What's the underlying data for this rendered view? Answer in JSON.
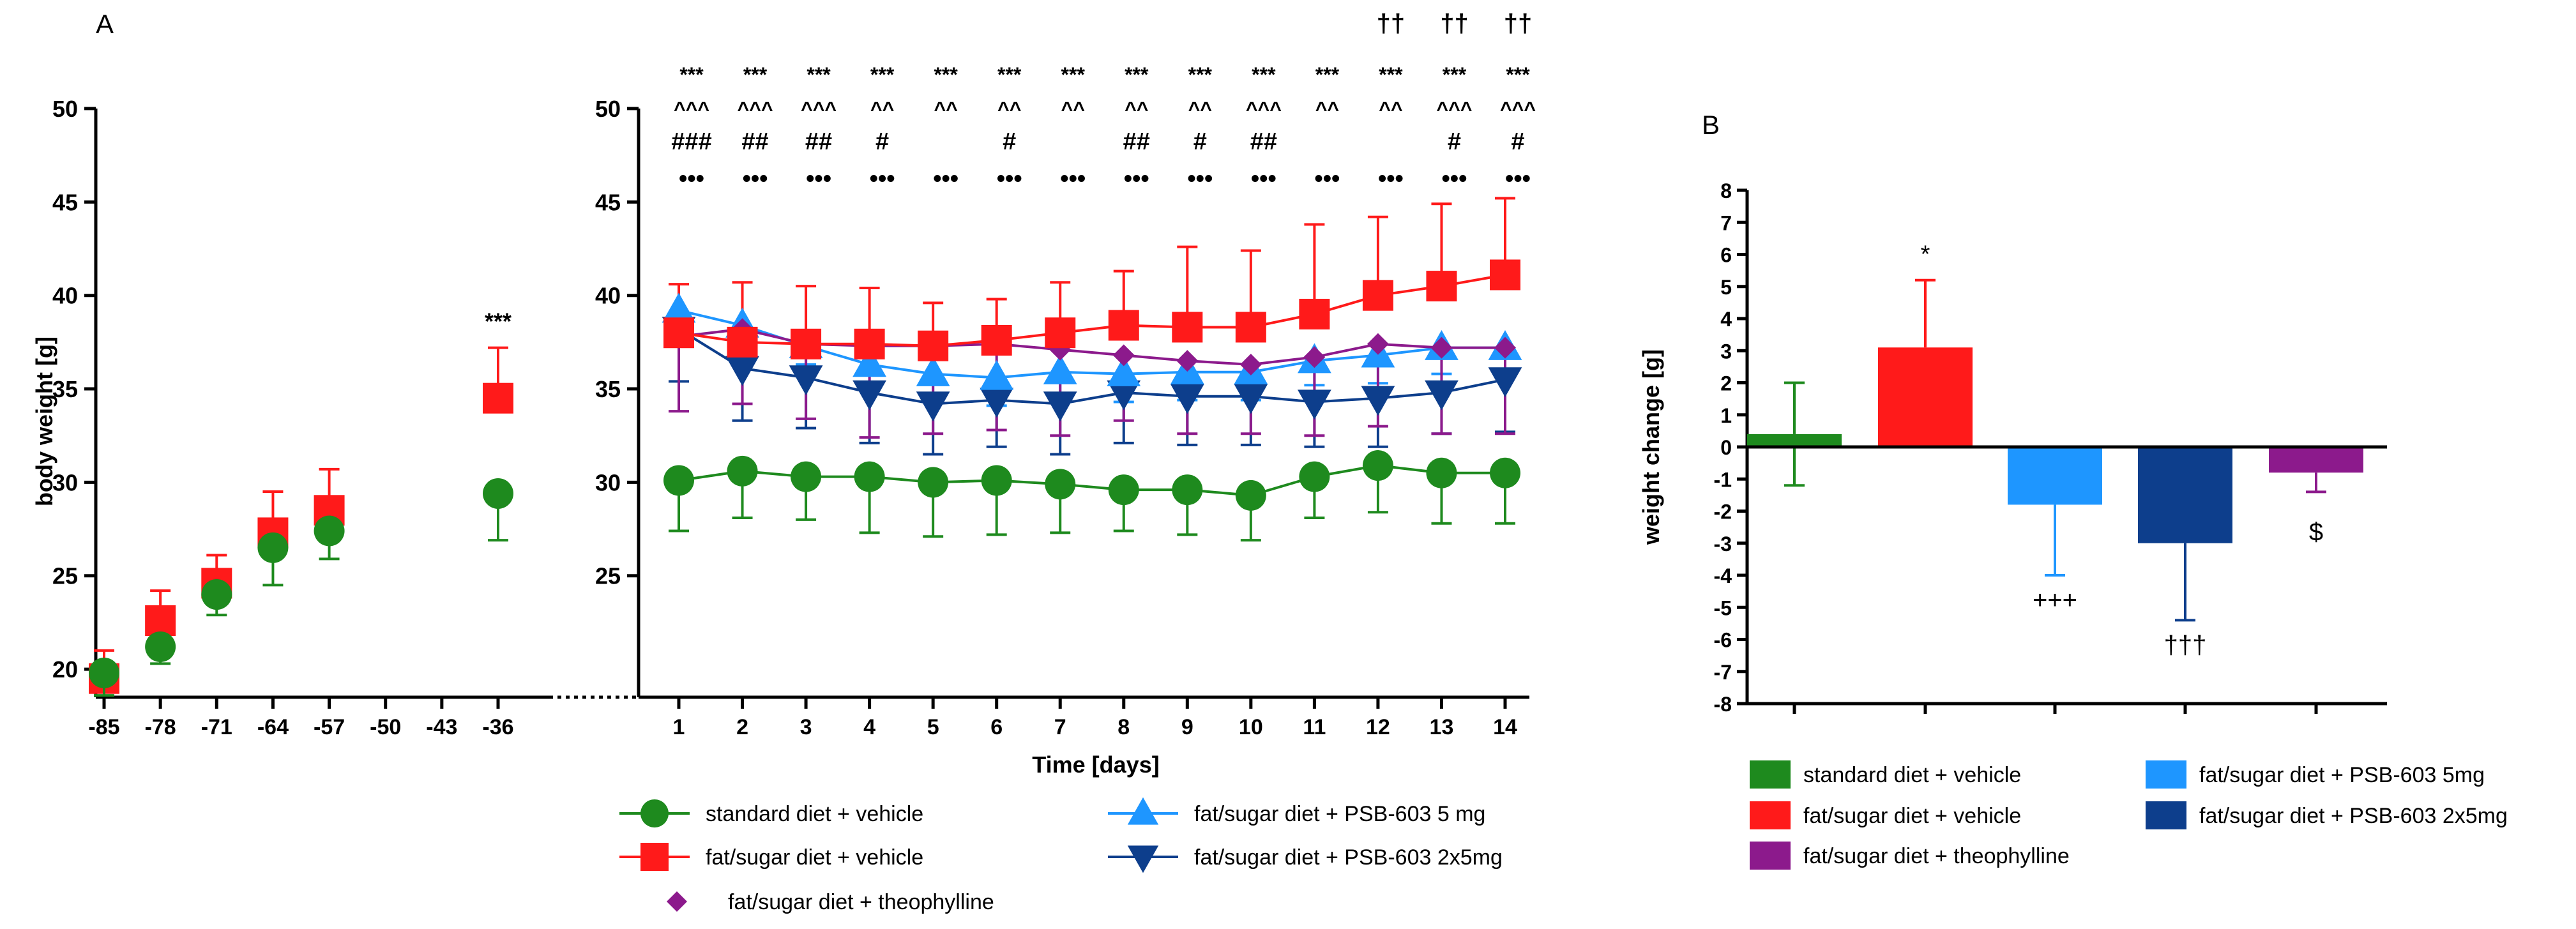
{
  "colors": {
    "green": "#1e8a1e",
    "red": "#ff1a1a",
    "lightblue": "#1e96ff",
    "navy": "#0d3e8c",
    "purple": "#8c1a8c",
    "axis": "#000000"
  },
  "chart_data": [
    {
      "panel": "A-left",
      "type": "scatter",
      "panel_label": "A",
      "ylabel": "body weight [g]",
      "xlabel": "",
      "xticks": [
        "-85",
        "-78",
        "-71",
        "-64",
        "-57",
        "-50",
        "-43",
        "-36"
      ],
      "yticks": [
        "20",
        "25",
        "30",
        "35",
        "40",
        "45",
        "50"
      ],
      "xlim": [
        -86,
        -30
      ],
      "ylim": [
        18.5,
        50
      ],
      "series": [
        {
          "name": "standard diet + vehicle",
          "color_key": "green",
          "marker": "circle",
          "x": [
            -85,
            -78,
            -71,
            -64,
            -57,
            -36
          ],
          "values": [
            19.8,
            21.2,
            24.0,
            26.5,
            27.4,
            29.4
          ],
          "err": [
            1.2,
            0.9,
            1.1,
            2.0,
            1.5,
            2.5
          ]
        },
        {
          "name": "fat/sugar diet + vehicle",
          "color_key": "red",
          "marker": "square",
          "x": [
            -85,
            -78,
            -71,
            -64,
            -57,
            -36
          ],
          "values": [
            19.5,
            22.6,
            24.6,
            27.3,
            28.5,
            34.5
          ],
          "err": [
            1.5,
            1.6,
            1.5,
            2.2,
            2.2,
            2.7
          ]
        }
      ],
      "annotations": [
        {
          "x": -36,
          "y": 38.2,
          "text": "***"
        }
      ]
    },
    {
      "panel": "A-right",
      "type": "line",
      "xlabel": "Time [days]",
      "xticks": [
        "1",
        "2",
        "3",
        "4",
        "5",
        "6",
        "7",
        "8",
        "9",
        "10",
        "11",
        "12",
        "13",
        "14"
      ],
      "yticks": [
        "25",
        "30",
        "35",
        "40",
        "45",
        "50"
      ],
      "ylim": [
        18.5,
        50
      ],
      "series": [
        {
          "name": "standard diet + vehicle",
          "color_key": "green",
          "marker": "circle",
          "values": [
            30.1,
            30.6,
            30.3,
            30.3,
            30.0,
            30.1,
            29.9,
            29.6,
            29.6,
            29.3,
            30.3,
            30.9,
            30.5,
            30.5
          ],
          "err": [
            2.7,
            2.5,
            2.3,
            3.0,
            2.9,
            2.9,
            2.6,
            2.2,
            2.4,
            2.4,
            2.2,
            2.5,
            2.7,
            2.7
          ],
          "err_dir": "down"
        },
        {
          "name": "fat/sugar diet + vehicle",
          "color_key": "red",
          "marker": "square",
          "values": [
            38.0,
            37.5,
            37.4,
            37.4,
            37.3,
            37.6,
            38.0,
            38.4,
            38.3,
            38.3,
            39.0,
            40.0,
            40.5,
            41.1
          ],
          "err": [
            2.6,
            3.2,
            3.1,
            3.0,
            2.3,
            2.2,
            2.7,
            2.9,
            4.3,
            4.1,
            4.8,
            4.2,
            4.4,
            4.1
          ],
          "err_dir": "up"
        },
        {
          "name": "fat/sugar diet + theophylline",
          "color_key": "purple",
          "marker": "diamond",
          "values": [
            37.8,
            38.2,
            37.4,
            37.3,
            37.3,
            37.4,
            37.1,
            36.8,
            36.5,
            36.3,
            36.7,
            37.4,
            37.2,
            37.2
          ],
          "err": [
            4.0,
            4.0,
            4.0,
            4.9,
            4.7,
            4.6,
            4.6,
            3.5,
            3.9,
            3.7,
            4.2,
            4.4,
            4.6,
            4.6
          ],
          "err_dir": "down"
        },
        {
          "name": "fat/sugar diet + PSB-603 5 mg",
          "color_key": "lightblue",
          "marker": "triangle-up",
          "values": [
            39.2,
            38.4,
            37.3,
            36.3,
            35.8,
            35.6,
            35.9,
            35.8,
            35.9,
            35.9,
            36.5,
            36.8,
            37.2,
            37.2
          ],
          "err": [
            1.5,
            1.0,
            1.0,
            1.3,
            1.5,
            1.5,
            1.2,
            1.5,
            1.5,
            1.5,
            1.3,
            1.5,
            1.4,
            1.4
          ],
          "err_dir": "down"
        },
        {
          "name": "fat/sugar diet + PSB-603 2x5mg",
          "color_key": "navy",
          "marker": "triangle-down",
          "values": [
            38.2,
            36.1,
            35.6,
            34.8,
            34.2,
            34.4,
            34.2,
            34.8,
            34.6,
            34.6,
            34.3,
            34.5,
            34.8,
            35.5
          ],
          "err": [
            2.8,
            2.8,
            2.7,
            2.7,
            2.7,
            2.5,
            2.7,
            2.7,
            2.6,
            2.6,
            2.4,
            2.6,
            2.2,
            2.8
          ],
          "err_dir": "down"
        }
      ],
      "significance": {
        "dagger": [
          "",
          "",
          "",
          "",
          "",
          "",
          "",
          "",
          "",
          "",
          "",
          "††",
          "††",
          "††"
        ],
        "stars": [
          "***",
          "***",
          "***",
          "***",
          "***",
          "***",
          "***",
          "***",
          "***",
          "***",
          "***",
          "***",
          "***",
          "***"
        ],
        "caret": [
          "^^^",
          "^^^",
          "^^^",
          "^^",
          "^^",
          "^^",
          "^^",
          "^^",
          "^^",
          "^^^",
          "^^",
          "^^",
          "^^^",
          "^^^"
        ],
        "hash": [
          "###",
          "##",
          "##",
          "#",
          "",
          "#",
          "",
          "##",
          "#",
          "##",
          "",
          "",
          "#",
          "#"
        ],
        "dots": [
          "•••",
          "•••",
          "•••",
          "•••",
          "•••",
          "•••",
          "•••",
          "•••",
          "•••",
          "•••",
          "•••",
          "•••",
          "•••",
          "•••"
        ]
      }
    },
    {
      "panel": "B",
      "type": "bar",
      "panel_label": "B",
      "ylabel": "weight change [g]",
      "yticks": [
        "8",
        "7",
        "6",
        "5",
        "4",
        "3",
        "2",
        "1",
        "0",
        "-1",
        "-2",
        "-3",
        "-4",
        "-5",
        "-6",
        "-7",
        "-8"
      ],
      "ylim": [
        -8,
        8
      ],
      "categories": [
        "standard diet + vehicle",
        "fat/sugar diet + vehicle",
        "fat/sugar diet + PSB-603 5mg",
        "fat/sugar diet + PSB-603 2x5mg",
        "fat/sugar diet + theophylline"
      ],
      "color_keys": [
        "green",
        "red",
        "lightblue",
        "navy",
        "purple"
      ],
      "values": [
        0.4,
        3.1,
        -1.8,
        -3.0,
        -0.8
      ],
      "err": [
        1.6,
        2.1,
        2.2,
        2.4,
        0.6
      ],
      "labels": [
        "",
        "*",
        "+++",
        "†††",
        "$"
      ]
    }
  ],
  "legend_a": [
    {
      "label": "standard diet + vehicle",
      "color_key": "green",
      "marker": "circle"
    },
    {
      "label": "fat/sugar diet + vehicle",
      "color_key": "red",
      "marker": "square"
    },
    {
      "label": "fat/sugar diet + theophylline",
      "color_key": "purple",
      "marker": "diamond"
    },
    {
      "label": "fat/sugar diet + PSB-603 5 mg",
      "color_key": "lightblue",
      "marker": "triangle-up"
    },
    {
      "label": "fat/sugar diet + PSB-603 2x5mg",
      "color_key": "navy",
      "marker": "triangle-down"
    }
  ],
  "legend_b": [
    {
      "label": "standard diet + vehicle",
      "color_key": "green"
    },
    {
      "label": "fat/sugar diet + vehicle",
      "color_key": "red"
    },
    {
      "label": "fat/sugar diet + theophylline",
      "color_key": "purple"
    },
    {
      "label": "fat/sugar diet + PSB-603 5mg",
      "color_key": "lightblue"
    },
    {
      "label": "fat/sugar diet + PSB-603 2x5mg",
      "color_key": "navy"
    }
  ]
}
